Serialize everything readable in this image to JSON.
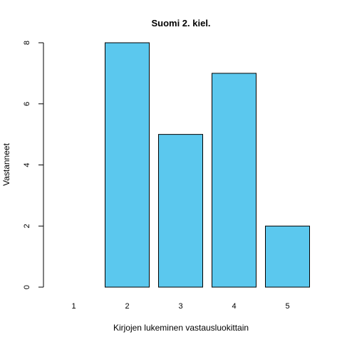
{
  "chart_data": {
    "type": "bar",
    "title": "Suomi 2. kiel.",
    "xlabel": "Kirjojen lukeminen vastausluokittain",
    "ylabel": "Vastanneet",
    "categories": [
      "1",
      "2",
      "3",
      "4",
      "5"
    ],
    "values": [
      0,
      8,
      5,
      7,
      2
    ],
    "ylim": [
      0,
      8
    ],
    "yticks": [
      0,
      2,
      4,
      6,
      8
    ],
    "grid": false,
    "legend": "none",
    "bar_color": "#5BC8EE",
    "bar_border_color": "#000000"
  }
}
